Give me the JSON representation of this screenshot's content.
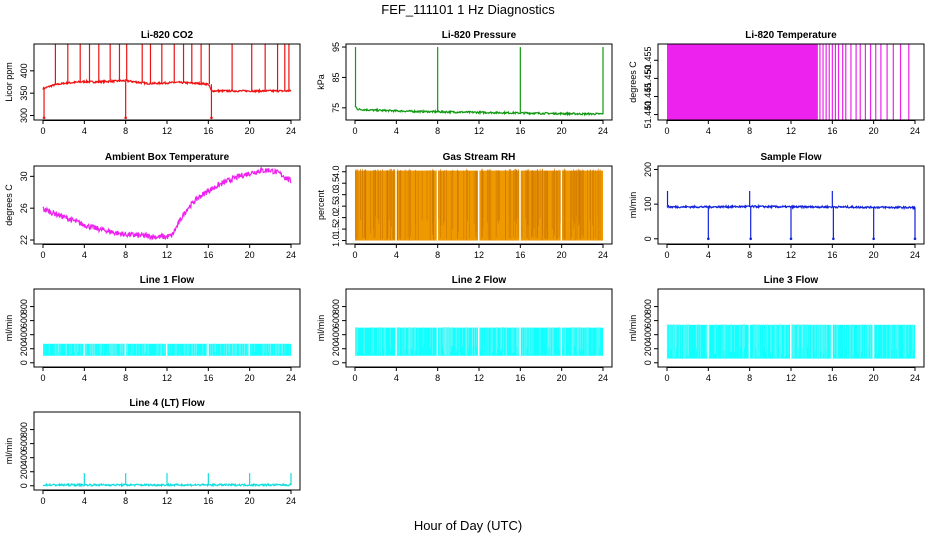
{
  "figure": {
    "title": "FEF_111101  1 Hz Diagnostics",
    "xlabel": "Hour of Day (UTC)"
  },
  "chart_data": [
    {
      "type": "line",
      "title": "Li-820 CO2",
      "ylabel": "Licor ppm",
      "color": "#ee1111",
      "xlim": [
        0,
        24
      ],
      "xticks": [
        0,
        4,
        8,
        12,
        16,
        20,
        24
      ],
      "ylim": [
        290,
        460
      ],
      "yticks": [
        300,
        350,
        400
      ],
      "x": [
        0,
        1,
        2,
        3,
        4,
        5,
        6,
        7,
        8,
        9,
        10,
        11,
        12,
        13,
        14,
        15,
        16,
        16.3,
        17,
        18,
        19,
        20,
        21,
        22,
        23,
        24
      ],
      "y": [
        360,
        368,
        372,
        374,
        376,
        375,
        376,
        377,
        378,
        375,
        372,
        372,
        373,
        374,
        373,
        372,
        370,
        355,
        355,
        355,
        355,
        355,
        355,
        355,
        355,
        355
      ],
      "spikes_x": [
        1.2,
        2.4,
        3.6,
        4.5,
        5.4,
        6.5,
        7.4,
        8.1,
        9.6,
        10.4,
        11.5,
        12.7,
        13.6,
        14.4,
        15.3,
        16.1,
        18.3,
        20.2,
        21.5,
        22.7,
        23.4,
        23.8
      ],
      "spikes_y": 460,
      "dips_x": [
        0.1,
        8.0,
        16.3
      ],
      "dips_y": 295
    },
    {
      "type": "line",
      "title": "Li-820 Pressure",
      "ylabel": "kPa",
      "color": "#119911",
      "xlim": [
        0,
        24
      ],
      "xticks": [
        0,
        4,
        8,
        12,
        16,
        20,
        24
      ],
      "ylim": [
        71,
        96
      ],
      "yticks": [
        75,
        85,
        95
      ],
      "x": [
        0,
        0.3,
        2,
        4,
        6,
        8,
        10,
        12,
        14,
        16,
        18,
        20,
        22,
        24
      ],
      "y": [
        75.5,
        74.5,
        74.2,
        74.0,
        73.8,
        73.7,
        73.6,
        73.5,
        73.4,
        73.3,
        73.2,
        73.1,
        73.0,
        73.0
      ],
      "spikes_x": [
        0.05,
        8.0,
        16.0,
        24.0
      ],
      "spikes_y": 95,
      "dips_x": [],
      "dips_y": 73
    },
    {
      "type": "band",
      "title": "Li-820 Temperature",
      "ylabel": "degrees C",
      "color": "#ee22ee",
      "xlim": [
        0,
        24
      ],
      "xticks": [
        0,
        4,
        8,
        12,
        16,
        20,
        24
      ],
      "ylim": [
        51.4385,
        51.4595
      ],
      "yticks": [
        51.44,
        51.445,
        51.45,
        51.455
      ],
      "ytick_labels": [
        "51.440",
        "51.445",
        "51.450",
        "51.455"
      ],
      "fill_from": 0,
      "fill_to": 14.6,
      "spikes_x": [
        14.8,
        15.1,
        15.4,
        15.7,
        16.0,
        16.3,
        16.6,
        17.0,
        17.3,
        17.8,
        18.3,
        18.7,
        19.2,
        19.7,
        20.2,
        20.7,
        21.3,
        21.9,
        22.6,
        23.4
      ]
    },
    {
      "type": "line",
      "title": "Ambient Box Temperature",
      "ylabel": "degrees C",
      "color": "#ee22ee",
      "xlim": [
        0,
        24
      ],
      "xticks": [
        0,
        4,
        8,
        12,
        16,
        20,
        24
      ],
      "ylim": [
        21.5,
        31.3
      ],
      "yticks": [
        22,
        26,
        30
      ],
      "x": [
        0,
        1,
        2,
        3,
        4,
        5,
        6,
        7,
        8,
        9,
        10,
        11,
        12,
        12.5,
        13,
        13.5,
        14,
        15,
        16,
        17,
        18,
        19,
        20,
        21,
        22,
        23,
        24
      ],
      "y": [
        25.9,
        25.4,
        24.9,
        24.4,
        23.9,
        23.5,
        23.2,
        22.9,
        22.7,
        22.6,
        22.5,
        22.4,
        22.4,
        22.6,
        23.8,
        25.0,
        26.0,
        27.3,
        28.2,
        28.9,
        29.5,
        30.0,
        30.4,
        30.7,
        30.8,
        30.3,
        29.4
      ],
      "noise": 0.35
    },
    {
      "type": "band",
      "title": "Gas Stream RH",
      "ylabel": "percent",
      "color": "#ee9900",
      "xlim": [
        0,
        24
      ],
      "xticks": [
        0,
        4,
        8,
        12,
        16,
        20,
        24
      ],
      "ylim": [
        0.85,
        4.25
      ],
      "yticks": [
        1.0,
        1.5,
        2.0,
        2.5,
        3.0,
        3.5,
        4.0
      ],
      "ytick_labels": [
        "1.0",
        "1.5",
        "2.0",
        "2.5",
        "3.0",
        "3.5",
        "4.0"
      ],
      "fill_from": 0,
      "fill_to": 24,
      "band_low": 1.0,
      "band_high": 4.05
    },
    {
      "type": "line",
      "title": "Sample Flow",
      "ylabel": "ml/min",
      "color": "#1122dd",
      "xlim": [
        0,
        24
      ],
      "xticks": [
        0,
        4,
        8,
        12,
        16,
        20,
        24
      ],
      "ylim": [
        -15,
        210
      ],
      "yticks": [
        0,
        100,
        200
      ],
      "x": [
        0,
        0.2,
        4,
        8,
        12,
        16,
        20,
        24
      ],
      "y": [
        95,
        92,
        92,
        93,
        92,
        92,
        91,
        90
      ],
      "spikes_x": [
        0.05,
        8.0,
        16.0
      ],
      "spikes_y": 138,
      "dips_x": [
        4.0,
        8.1,
        12.0,
        16.1,
        20.0,
        24.0
      ],
      "dips_y": 0
    },
    {
      "type": "band",
      "title": "Line 1 Flow",
      "ylabel": "ml/min",
      "color": "#11ffff",
      "xlim": [
        0,
        24
      ],
      "xticks": [
        0,
        4,
        8,
        12,
        16,
        20,
        24
      ],
      "ylim": [
        -60,
        1050
      ],
      "yticks": [
        0,
        200,
        400,
        600,
        800
      ],
      "ytick_labels": [
        "0",
        "200",
        "400",
        "600",
        "800"
      ],
      "fill_from": 0,
      "fill_to": 24,
      "band_low": 100,
      "band_high": 270
    },
    {
      "type": "band",
      "title": "Line 2 Flow",
      "ylabel": "ml/min",
      "color": "#11ffff",
      "xlim": [
        0,
        24
      ],
      "xticks": [
        0,
        4,
        8,
        12,
        16,
        20,
        24
      ],
      "ylim": [
        -60,
        1050
      ],
      "yticks": [
        0,
        200,
        400,
        600,
        800
      ],
      "ytick_labels": [
        "0",
        "200",
        "400",
        "600",
        "800"
      ],
      "fill_from": 0,
      "fill_to": 24,
      "band_low": 100,
      "band_high": 500
    },
    {
      "type": "band",
      "title": "Line 3 Flow",
      "ylabel": "ml/min",
      "color": "#11ffff",
      "xlim": [
        0,
        24
      ],
      "xticks": [
        0,
        4,
        8,
        12,
        16,
        20,
        24
      ],
      "ylim": [
        -60,
        1050
      ],
      "yticks": [
        0,
        200,
        400,
        600,
        800
      ],
      "ytick_labels": [
        "0",
        "200",
        "400",
        "600",
        "800"
      ],
      "fill_from": 0,
      "fill_to": 24,
      "band_low": 60,
      "band_high": 540
    },
    {
      "type": "line",
      "title": "Line 4 (LT) Flow",
      "ylabel": "ml/min",
      "color": "#11dddd",
      "xlim": [
        0,
        24
      ],
      "xticks": [
        0,
        4,
        8,
        12,
        16,
        20,
        24
      ],
      "ylim": [
        -60,
        1050
      ],
      "yticks": [
        0,
        200,
        400,
        600,
        800
      ],
      "x": [
        0,
        24
      ],
      "y": [
        12,
        12
      ],
      "spikes_x": [
        4.0,
        8.0,
        12.0,
        16.0,
        20.0,
        24.0
      ],
      "spikes_y": 180,
      "dips_x": [],
      "dips_y": 0
    }
  ]
}
